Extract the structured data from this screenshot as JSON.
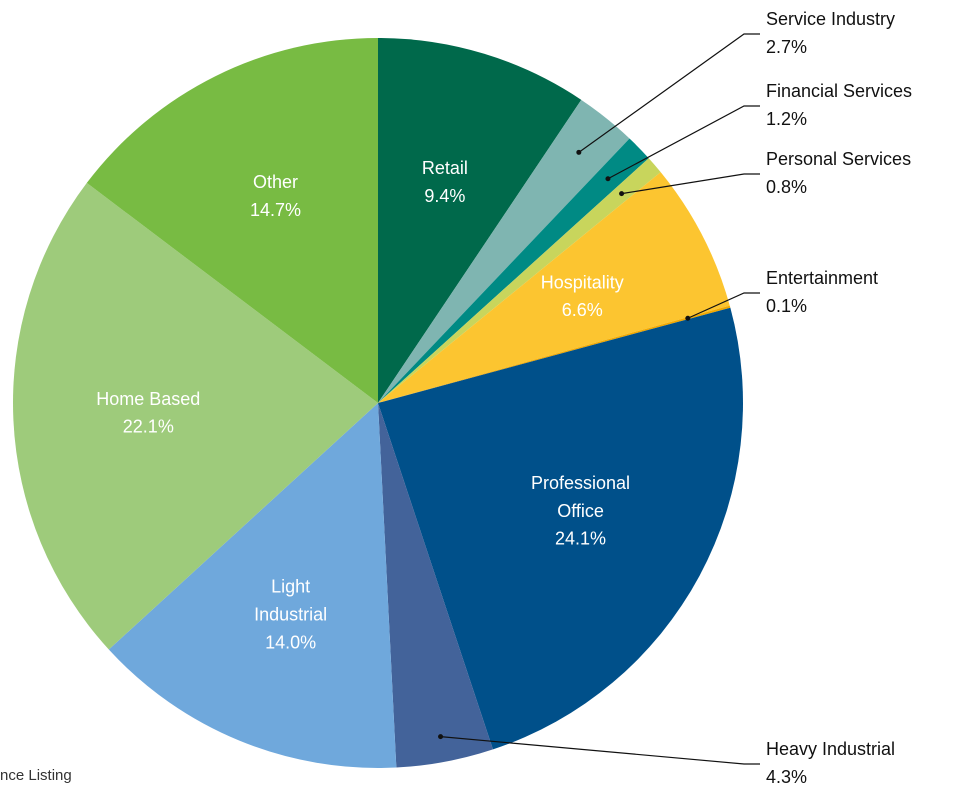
{
  "chart_data": {
    "type": "pie",
    "categories": [
      "Retail",
      "Service Industry",
      "Financial Services",
      "Personal Services",
      "Hospitality",
      "Entertainment",
      "Professional Office",
      "Heavy Industrial",
      "Light Industrial",
      "Home Based",
      "Other"
    ],
    "values": [
      9.4,
      2.7,
      1.2,
      0.8,
      6.6,
      0.1,
      24.1,
      4.3,
      14.0,
      22.1,
      14.7
    ],
    "value_labels": [
      "9.4%",
      "2.7%",
      "1.2%",
      "0.8%",
      "6.6%",
      "0.1%",
      "24.1%",
      "4.3%",
      "14.0%",
      "22.1%",
      "14.7%"
    ],
    "colors": [
      "#00694b",
      "#7fb5b1",
      "#008a84",
      "#c8d55c",
      "#fcc530",
      "#f2a900",
      "#00508a",
      "#43639a",
      "#6fa8dc",
      "#9ecb7b",
      "#78bb43"
    ],
    "source": "nce Listing"
  }
}
